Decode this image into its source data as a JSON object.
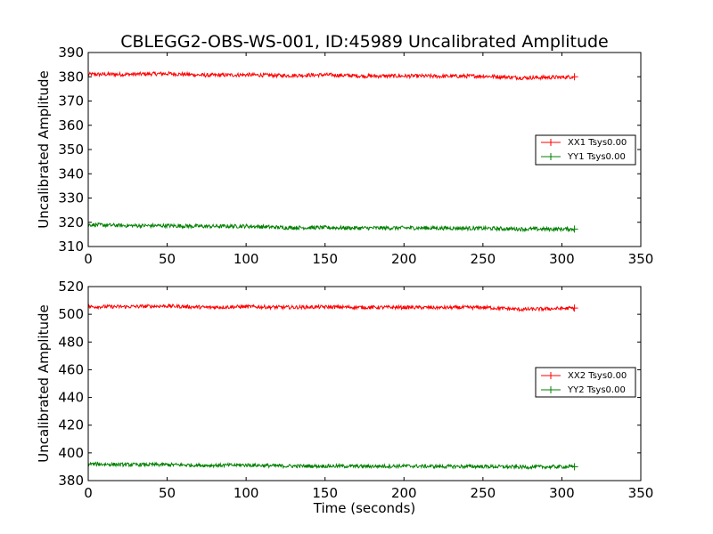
{
  "chart_data": [
    {
      "type": "line",
      "title": "CBLEGG2-OBS-WS-001, ID:45989 Uncalibrated Amplitude",
      "xlabel": "",
      "ylabel": "Uncalibrated Amplitude",
      "xlim": [
        0,
        350
      ],
      "ylim": [
        310,
        390
      ],
      "xticks": [
        0,
        50,
        100,
        150,
        200,
        250,
        300,
        350
      ],
      "yticks": [
        310,
        320,
        330,
        340,
        350,
        360,
        370,
        380,
        390
      ],
      "legend_position": "center-right",
      "grid": false,
      "series": [
        {
          "name": "XX1 Tsys0.00",
          "color": "#ff0000",
          "x": [
            0,
            25,
            50,
            75,
            100,
            125,
            150,
            175,
            200,
            225,
            250,
            275,
            300,
            308
          ],
          "values": [
            381,
            381,
            381.3,
            380.6,
            380.8,
            380.5,
            380.8,
            380.3,
            380.3,
            380.2,
            380.3,
            379.6,
            379.8,
            380
          ],
          "noise": 0.8
        },
        {
          "name": "YY1 Tsys0.00",
          "color": "#008000",
          "x": [
            0,
            25,
            50,
            75,
            100,
            125,
            150,
            175,
            200,
            225,
            250,
            275,
            300,
            308
          ],
          "values": [
            319,
            318.6,
            318.6,
            318.3,
            318.4,
            317.8,
            317.8,
            317.6,
            317.7,
            317.6,
            317.5,
            317.2,
            317.2,
            317.2
          ],
          "noise": 0.8
        }
      ]
    },
    {
      "type": "line",
      "title": "",
      "xlabel": "Time (seconds)",
      "ylabel": "Uncalibrated Amplitude",
      "xlim": [
        0,
        350
      ],
      "ylim": [
        380,
        520
      ],
      "xticks": [
        0,
        50,
        100,
        150,
        200,
        250,
        300,
        350
      ],
      "yticks": [
        380,
        400,
        420,
        440,
        460,
        480,
        500,
        520
      ],
      "legend_position": "center-right",
      "grid": false,
      "series": [
        {
          "name": "XX2 Tsys0.00",
          "color": "#ff0000",
          "x": [
            0,
            25,
            50,
            75,
            100,
            125,
            150,
            175,
            200,
            225,
            250,
            275,
            300,
            308
          ],
          "values": [
            505.5,
            505.5,
            506,
            505,
            505.5,
            505,
            505.3,
            505,
            505,
            504.8,
            505,
            503.5,
            504.2,
            504.5
          ],
          "noise": 1.3
        },
        {
          "name": "YY2 Tsys0.00",
          "color": "#008000",
          "x": [
            0,
            25,
            50,
            75,
            100,
            125,
            150,
            175,
            200,
            225,
            250,
            275,
            300,
            308
          ],
          "values": [
            392,
            391.5,
            391.5,
            391,
            391.2,
            390.5,
            390.5,
            390.3,
            390.5,
            390.2,
            390.2,
            389.8,
            390,
            390
          ],
          "noise": 1.3
        }
      ]
    }
  ]
}
